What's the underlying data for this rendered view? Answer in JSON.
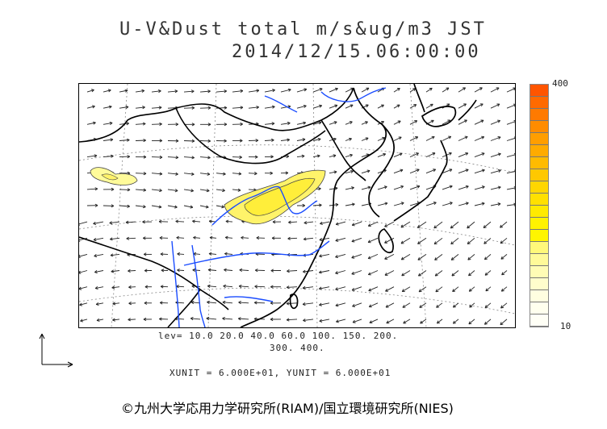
{
  "title": {
    "line1": "U-V&Dust total m/s&ug/m3 JST",
    "line2": "2014/12/15.06:00:00"
  },
  "legend": {
    "max_label": "400",
    "min_label": "10",
    "colors": [
      "#ff5500",
      "#ff6a00",
      "#ff7a00",
      "#ff8c00",
      "#ff9e00",
      "#ffab00",
      "#ffbb00",
      "#ffc800",
      "#ffd600",
      "#ffe000",
      "#ffea00",
      "#fff200",
      "#fff500",
      "#fff87a",
      "#fffa99",
      "#fffcb5",
      "#fffdcc",
      "#fffee0",
      "#ffffee",
      "#fffff6"
    ]
  },
  "levels": {
    "line1": "lev= 10.0 20.0 40.0 60.0 100. 150. 200.",
    "line2": "300. 400."
  },
  "units": {
    "line": "XUNIT = 6.000E+01, YUNIT = 6.000E+01"
  },
  "credit": "©九州大学応用力学研究所(RIAM)/国立環境研究所(NIES)",
  "map": {
    "coast_color": "#000000",
    "border_color": "#000000",
    "river_color": "#1a4cff",
    "grid_color": "#888888",
    "dust_colors": [
      "#fffb9a",
      "#fff36a",
      "#ffee3a"
    ]
  }
}
